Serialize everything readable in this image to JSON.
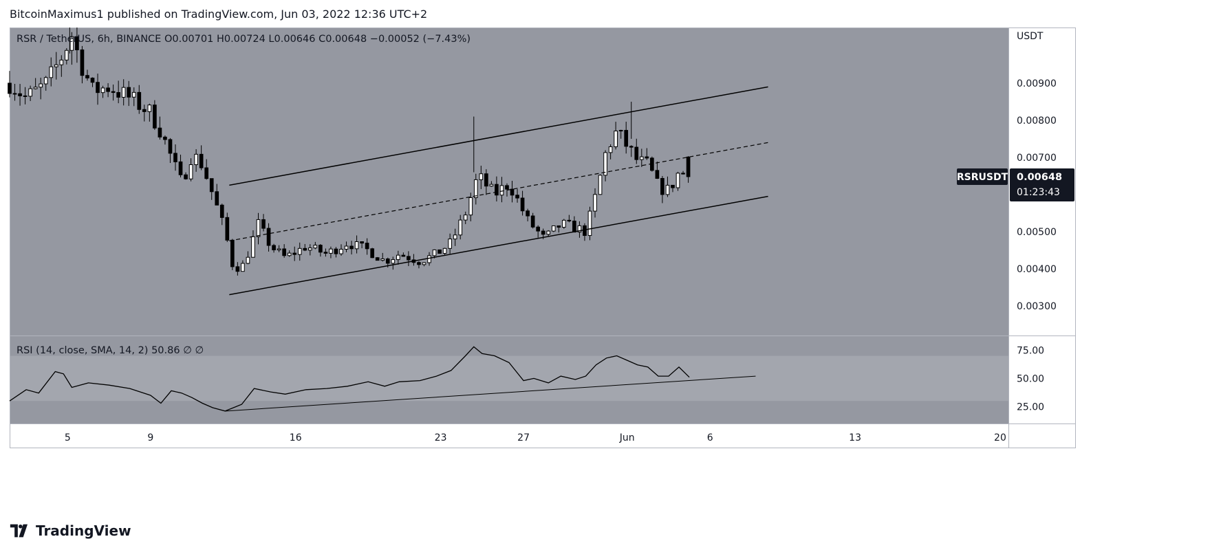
{
  "header": {
    "attribution": "BitcoinMaximus1 published on TradingView.com, Jun 03, 2022 12:36 UTC+2"
  },
  "footer": {
    "brand": "TradingView",
    "logo_icon": "tradingview-logo-icon"
  },
  "colors": {
    "pane_bg": "#9598a1",
    "rsi_band": "#a3a6ae",
    "candle_up": "#ffffff",
    "candle_down": "#000000",
    "line": "#000000",
    "price_tag_bg": "#131722",
    "price_tag_fg": "#ffffff"
  },
  "chart_data": [
    {
      "type": "candlestick",
      "legend": {
        "symbol": "RSR / TetherUS, 6h, BINANCE",
        "open_label": "O",
        "open": "0.00701",
        "high_label": "H",
        "high": "0.00724",
        "low_label": "L",
        "low": "0.00646",
        "close_label": "C",
        "close": "0.00648",
        "change": "−0.00052 (−7.43%)"
      },
      "currency": "USDT",
      "ylim": [
        0.0022,
        0.0105
      ],
      "y_ticks": [
        {
          "value": 0.009,
          "label": "0.00900"
        },
        {
          "value": 0.008,
          "label": "0.00800"
        },
        {
          "value": 0.007,
          "label": "0.00700"
        },
        {
          "value": 0.005,
          "label": "0.00500"
        },
        {
          "value": 0.004,
          "label": "0.00400"
        },
        {
          "value": 0.003,
          "label": "0.00300"
        }
      ],
      "last_price": {
        "value": 0.00648,
        "symbol": "RSRUSDT",
        "price": "0.00648",
        "countdown": "01:23:43"
      },
      "x_days_from_may2": {
        "start": 0.2,
        "end": 48.4
      },
      "x_ticks": [
        {
          "day": 3,
          "label": "5"
        },
        {
          "day": 7,
          "label": "9"
        },
        {
          "day": 14,
          "label": "16"
        },
        {
          "day": 21,
          "label": "23"
        },
        {
          "day": 25,
          "label": "27"
        },
        {
          "day": 30,
          "label": "Jun"
        },
        {
          "day": 34,
          "label": "6"
        },
        {
          "day": 41,
          "label": "13"
        },
        {
          "day": 48,
          "label": "20"
        }
      ],
      "anchors": [
        [
          0.2,
          0.009
        ],
        [
          1.0,
          0.0086
        ],
        [
          2.0,
          0.009
        ],
        [
          2.8,
          0.0098
        ],
        [
          3.2,
          0.0103
        ],
        [
          3.6,
          0.0096
        ],
        [
          4.2,
          0.0088
        ],
        [
          5.0,
          0.0089
        ],
        [
          6.0,
          0.0086
        ],
        [
          7.0,
          0.0082
        ],
        [
          7.5,
          0.0077
        ],
        [
          8.0,
          0.007
        ],
        [
          8.5,
          0.0063
        ],
        [
          9.0,
          0.0071
        ],
        [
          9.5,
          0.0068
        ],
        [
          10.0,
          0.006
        ],
        [
          10.6,
          0.005
        ],
        [
          11.0,
          0.004
        ],
        [
          11.5,
          0.0041
        ],
        [
          12.2,
          0.0052
        ],
        [
          12.8,
          0.0046
        ],
        [
          13.5,
          0.0043
        ],
        [
          14.5,
          0.0046
        ],
        [
          15.5,
          0.0044
        ],
        [
          16.5,
          0.0047
        ],
        [
          17.5,
          0.0045
        ],
        [
          18.3,
          0.0042
        ],
        [
          19.0,
          0.0044
        ],
        [
          20.0,
          0.0042
        ],
        [
          20.8,
          0.0044
        ],
        [
          21.5,
          0.0047
        ],
        [
          22.2,
          0.0055
        ],
        [
          22.8,
          0.0065
        ],
        [
          23.6,
          0.006
        ],
        [
          24.3,
          0.0063
        ],
        [
          25.2,
          0.0053
        ],
        [
          26.0,
          0.0048
        ],
        [
          26.8,
          0.0052
        ],
        [
          27.5,
          0.0051
        ],
        [
          28.0,
          0.005
        ],
        [
          28.5,
          0.006
        ],
        [
          29.0,
          0.0072
        ],
        [
          29.5,
          0.0077
        ],
        [
          30.0,
          0.0073
        ],
        [
          30.5,
          0.0069
        ],
        [
          31.0,
          0.0068
        ],
        [
          31.5,
          0.0062
        ],
        [
          32.0,
          0.0061
        ],
        [
          32.5,
          0.0066
        ],
        [
          33.0,
          0.0065
        ]
      ],
      "channel": {
        "upper": [
          [
            10.8,
            0.00625
          ],
          [
            36.8,
            0.0089
          ]
        ],
        "middle": [
          [
            10.8,
            0.00475
          ],
          [
            36.8,
            0.0074
          ]
        ],
        "lower": [
          [
            10.8,
            0.0033
          ],
          [
            36.8,
            0.00595
          ]
        ]
      }
    },
    {
      "type": "line",
      "legend": {
        "label": "RSI (14, close, SMA, 14, 2)",
        "value": "50.86",
        "extra": "∅  ∅"
      },
      "ylim": [
        10,
        88
      ],
      "band": [
        30,
        70
      ],
      "y_ticks": [
        {
          "value": 75,
          "label": "75.00"
        },
        {
          "value": 50,
          "label": "50.00"
        },
        {
          "value": 25,
          "label": "25.00"
        }
      ],
      "points": [
        [
          0.2,
          30
        ],
        [
          1.0,
          40
        ],
        [
          1.6,
          37
        ],
        [
          2.4,
          56
        ],
        [
          2.8,
          54
        ],
        [
          3.2,
          42
        ],
        [
          4.0,
          46
        ],
        [
          5.0,
          44
        ],
        [
          6.0,
          41
        ],
        [
          7.0,
          35
        ],
        [
          7.5,
          28
        ],
        [
          8.0,
          39
        ],
        [
          8.5,
          37
        ],
        [
          9.0,
          33
        ],
        [
          9.5,
          28
        ],
        [
          10.0,
          24
        ],
        [
          10.6,
          21
        ],
        [
          11.4,
          27
        ],
        [
          12.0,
          41
        ],
        [
          12.8,
          38
        ],
        [
          13.5,
          36
        ],
        [
          14.5,
          40
        ],
        [
          15.5,
          41
        ],
        [
          16.5,
          43
        ],
        [
          17.5,
          47
        ],
        [
          18.3,
          43
        ],
        [
          19.0,
          47
        ],
        [
          20.0,
          48
        ],
        [
          20.8,
          52
        ],
        [
          21.5,
          57
        ],
        [
          22.2,
          70
        ],
        [
          22.6,
          78
        ],
        [
          23.0,
          72
        ],
        [
          23.6,
          70
        ],
        [
          24.3,
          64
        ],
        [
          25.0,
          48
        ],
        [
          25.5,
          50
        ],
        [
          26.2,
          46
        ],
        [
          26.8,
          52
        ],
        [
          27.5,
          49
        ],
        [
          28.0,
          52
        ],
        [
          28.5,
          62
        ],
        [
          29.0,
          68
        ],
        [
          29.5,
          70
        ],
        [
          30.0,
          66
        ],
        [
          30.5,
          62
        ],
        [
          31.0,
          60
        ],
        [
          31.5,
          52
        ],
        [
          32.0,
          52
        ],
        [
          32.5,
          60
        ],
        [
          33.0,
          51
        ]
      ],
      "trendline": [
        [
          10.6,
          21
        ],
        [
          36.2,
          52
        ]
      ]
    }
  ]
}
